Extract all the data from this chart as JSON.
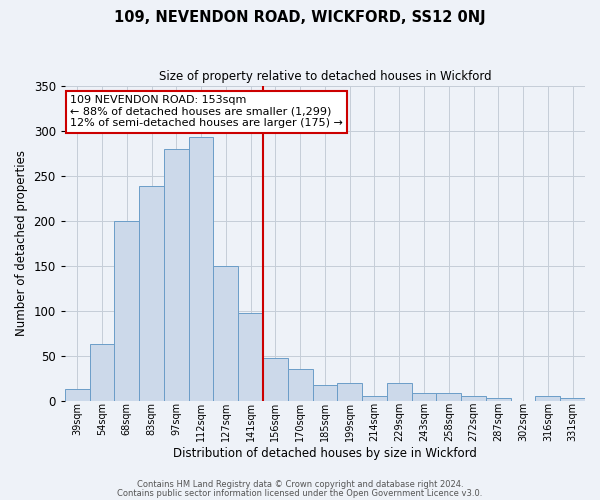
{
  "title": "109, NEVENDON ROAD, WICKFORD, SS12 0NJ",
  "subtitle": "Size of property relative to detached houses in Wickford",
  "xlabel": "Distribution of detached houses by size in Wickford",
  "ylabel": "Number of detached properties",
  "categories": [
    "39sqm",
    "54sqm",
    "68sqm",
    "83sqm",
    "97sqm",
    "112sqm",
    "127sqm",
    "141sqm",
    "156sqm",
    "170sqm",
    "185sqm",
    "199sqm",
    "214sqm",
    "229sqm",
    "243sqm",
    "258sqm",
    "272sqm",
    "287sqm",
    "302sqm",
    "316sqm",
    "331sqm"
  ],
  "values": [
    13,
    63,
    200,
    238,
    280,
    293,
    150,
    97,
    47,
    35,
    17,
    19,
    5,
    19,
    8,
    8,
    5,
    3,
    0,
    5,
    3
  ],
  "bar_color": "#ccd9ea",
  "bar_edge_color": "#6b9dc8",
  "vline_color": "#cc0000",
  "vline_x": 7.5,
  "ylim": [
    0,
    350
  ],
  "yticks": [
    0,
    50,
    100,
    150,
    200,
    250,
    300,
    350
  ],
  "annotation_text": "109 NEVENDON ROAD: 153sqm\n← 88% of detached houses are smaller (1,299)\n12% of semi-detached houses are larger (175) →",
  "annotation_box_color": "#ffffff",
  "annotation_box_edge_color": "#cc0000",
  "footer_line1": "Contains HM Land Registry data © Crown copyright and database right 2024.",
  "footer_line2": "Contains public sector information licensed under the Open Government Licence v3.0.",
  "background_color": "#eef2f8",
  "plot_bg_color": "#eef2f8",
  "grid_color": "#c5cdd8"
}
